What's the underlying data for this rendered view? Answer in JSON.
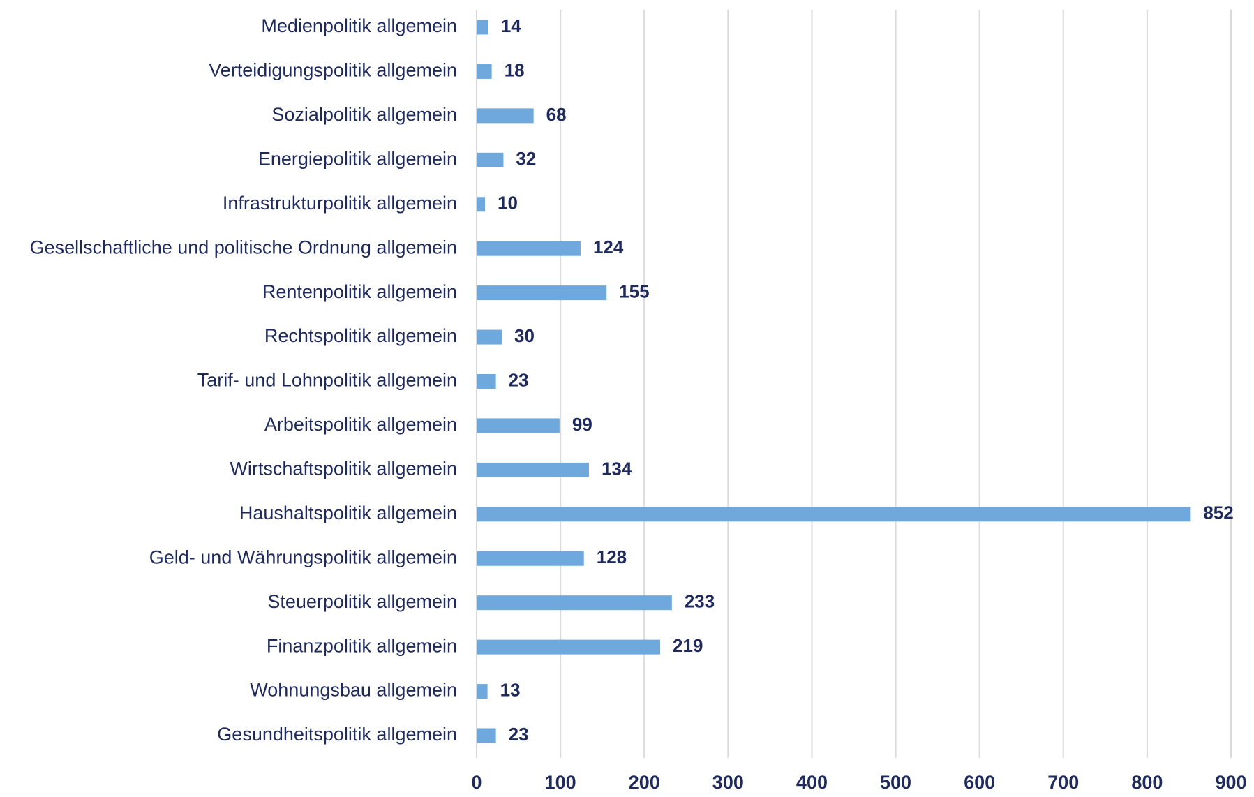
{
  "chart_data": {
    "type": "bar",
    "orientation": "horizontal",
    "categories": [
      "Medienpolitik allgemein",
      "Verteidigungspolitik allgemein",
      "Sozialpolitik allgemein",
      "Energiepolitik allgemein",
      "Infrastrukturpolitik allgemein",
      "Gesellschaftliche und politische Ordnung allgemein",
      "Rentenpolitik allgemein",
      "Rechtspolitik allgemein",
      "Tarif- und Lohnpolitik allgemein",
      "Arbeitspolitik allgemein",
      "Wirtschaftspolitik allgemein",
      "Haushaltspolitik allgemein",
      "Geld- und Währungspolitik allgemein",
      "Steuerpolitik allgemein",
      "Finanzpolitik allgemein",
      "Wohnungsbau allgemein",
      "Gesundheitspolitik allgemein"
    ],
    "values": [
      14,
      18,
      68,
      32,
      10,
      124,
      155,
      30,
      23,
      99,
      134,
      852,
      128,
      233,
      219,
      13,
      23
    ],
    "color": "#6fa8dc",
    "xlim": [
      0,
      900
    ],
    "xticks": [
      0,
      100,
      200,
      300,
      400,
      500,
      600,
      700,
      800,
      900
    ],
    "grid": true
  }
}
